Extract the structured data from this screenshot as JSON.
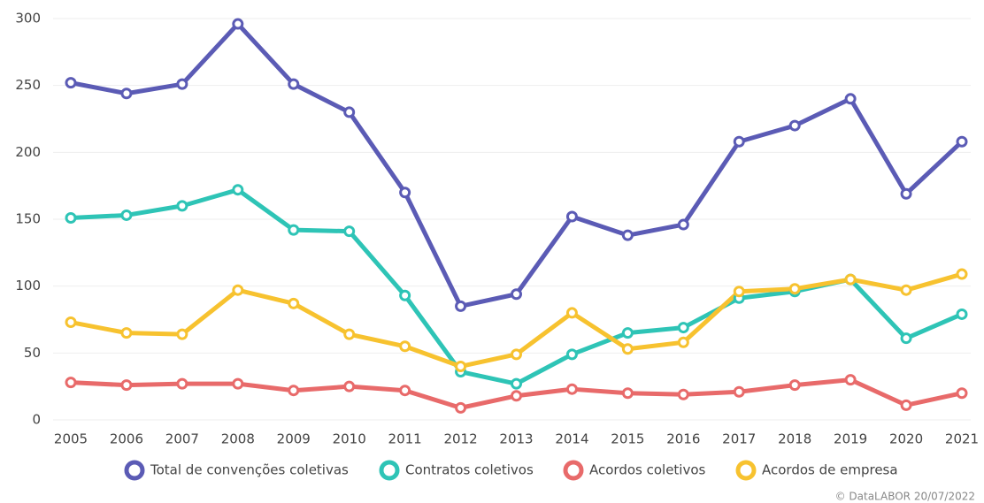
{
  "chart_data": {
    "type": "line",
    "categories": [
      "2005",
      "2006",
      "2007",
      "2008",
      "2009",
      "2010",
      "2011",
      "2012",
      "2013",
      "2014",
      "2015",
      "2016",
      "2017",
      "2018",
      "2019",
      "2020",
      "2021"
    ],
    "series": [
      {
        "name": "Total de convenções coletivas",
        "color": "#5b5bb5",
        "values": [
          252,
          244,
          251,
          296,
          251,
          230,
          170,
          85,
          94,
          152,
          138,
          146,
          208,
          220,
          240,
          169,
          208
        ]
      },
      {
        "name": "Contratos coletivos",
        "color": "#2ec4b6",
        "values": [
          151,
          153,
          160,
          172,
          142,
          141,
          93,
          36,
          27,
          49,
          65,
          69,
          91,
          96,
          105,
          61,
          79
        ]
      },
      {
        "name": "Acordos coletivos",
        "color": "#e86a6a",
        "values": [
          28,
          26,
          27,
          27,
          22,
          25,
          22,
          9,
          18,
          23,
          20,
          19,
          21,
          26,
          30,
          11,
          20
        ]
      },
      {
        "name": "Acordos de empresa",
        "color": "#f7c22f",
        "values": [
          73,
          65,
          64,
          97,
          87,
          64,
          55,
          40,
          49,
          80,
          53,
          58,
          96,
          98,
          105,
          97,
          109
        ]
      }
    ],
    "ylim": [
      0,
      300
    ],
    "yticks": [
      0,
      50,
      100,
      150,
      200,
      250,
      300
    ],
    "grid": true,
    "legend": "bottom",
    "credit": "© DataLABOR 20/07/2022"
  }
}
